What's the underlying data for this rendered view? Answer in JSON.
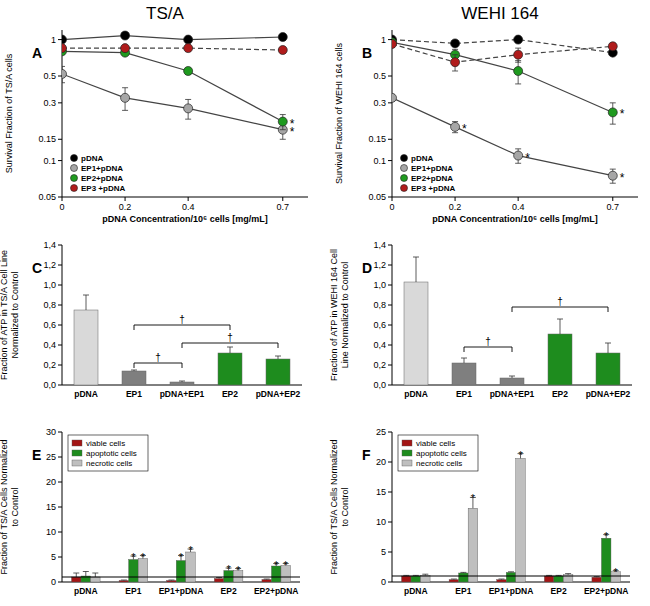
{
  "columns": [
    "TS/A",
    "WEHI 164"
  ],
  "chart_data": [
    {
      "type": "line",
      "title": "A",
      "log": "y",
      "grid": false,
      "legend": "lower left",
      "xlabel": "pDNA Concentration/10⁶ cells [mg/mL]",
      "ylabel": [
        "Survival Fraction of TS/A cells"
      ],
      "x": [
        0,
        0.2,
        0.4,
        0.7
      ],
      "xlim": [
        0,
        0.78
      ],
      "xticks": [
        0,
        0.2,
        0.4,
        0.7
      ],
      "ylim": [
        0.05,
        1.2
      ],
      "yticks": [
        0.05,
        0.1,
        0.15,
        0.3,
        0.5,
        1
      ],
      "series": [
        {
          "name": "pDNA",
          "color": "#000000",
          "marker": "circle",
          "line_style": "solid",
          "values": [
            1.0,
            1.08,
            1.0,
            1.05
          ],
          "errors": [
            0.02,
            0.03,
            0.02,
            0.03
          ]
        },
        {
          "name": "EP1+pDNA",
          "color": "#a6a6a6",
          "marker": "circle",
          "line_style": "solid",
          "values": [
            0.52,
            0.33,
            0.27,
            0.18
          ],
          "errors": [
            0.08,
            0.07,
            0.05,
            0.03
          ]
        },
        {
          "name": "EP2+pDNA",
          "color": "#1f9a1f",
          "marker": "circle",
          "line_style": "solid",
          "values": [
            0.8,
            0.78,
            0.55,
            0.21
          ],
          "errors": [
            0.03,
            0.04,
            0.03,
            0.03
          ]
        },
        {
          "name": "EP3 +pDNA",
          "color": "#b01c1c",
          "marker": "circle",
          "line_style": "dashed",
          "values": [
            0.85,
            0.85,
            0.85,
            0.82
          ],
          "errors": [
            0.02,
            0.03,
            0.02,
            0.03
          ]
        }
      ],
      "annotations": [
        {
          "text": "*",
          "series": 1,
          "index": 3
        },
        {
          "text": "*",
          "series": 2,
          "index": 3
        }
      ]
    },
    {
      "type": "line",
      "title": "B",
      "log": "y",
      "grid": false,
      "legend": "lower left",
      "xlabel": "pDNA Concentration/10⁶ cells [mg/mL]",
      "ylabel": [
        "Survival Fraction of WEHI 164 cells"
      ],
      "x": [
        0,
        0.2,
        0.4,
        0.7
      ],
      "xlim": [
        0,
        0.78
      ],
      "xticks": [
        0,
        0.2,
        0.4,
        0.7
      ],
      "ylim": [
        0.05,
        1.2
      ],
      "yticks": [
        0.05,
        0.1,
        0.15,
        0.3,
        0.5,
        1
      ],
      "series": [
        {
          "name": "pDNA",
          "color": "#000000",
          "marker": "circle",
          "line_style": "dashed",
          "values": [
            1.0,
            0.93,
            1.0,
            0.78
          ],
          "errors": [
            0.03,
            0.04,
            0.03,
            0.04
          ]
        },
        {
          "name": "EP1+pDNA",
          "color": "#a6a6a6",
          "marker": "circle",
          "line_style": "solid",
          "values": [
            0.33,
            0.19,
            0.11,
            0.075
          ],
          "errors": [
            0.02,
            0.02,
            0.015,
            0.01
          ]
        },
        {
          "name": "EP2+pDNA",
          "color": "#1f9a1f",
          "marker": "circle",
          "line_style": "solid",
          "values": [
            0.95,
            0.75,
            0.55,
            0.25
          ],
          "errors": [
            0.05,
            0.08,
            0.12,
            0.05
          ]
        },
        {
          "name": "EP3 +pDNA",
          "color": "#b01c1c",
          "marker": "circle",
          "line_style": "dashed",
          "values": [
            0.92,
            0.65,
            0.75,
            0.88
          ],
          "errors": [
            0.05,
            0.1,
            0.1,
            0.05
          ]
        }
      ],
      "annotations": [
        {
          "text": "*",
          "series": 1,
          "index": 1
        },
        {
          "text": "*",
          "series": 1,
          "index": 2
        },
        {
          "text": "*",
          "series": 1,
          "index": 3
        },
        {
          "text": "*",
          "series": 2,
          "index": 3
        }
      ]
    },
    {
      "type": "bar",
      "title": "C",
      "grid": false,
      "ylabel": [
        "Fraction of ATP in TS/A Cell Line",
        "Normalized to Control"
      ],
      "categories": [
        "pDNA",
        "EP1",
        "pDNA+EP1",
        "EP2",
        "pDNA+EP2"
      ],
      "values": [
        0.75,
        0.14,
        0.03,
        0.32,
        0.26
      ],
      "errors": [
        0.15,
        0.01,
        0.01,
        0.06,
        0.03
      ],
      "colors": [
        "#d9d9d9",
        "#7f7f7f",
        "#7f7f7f",
        "#1e8c1e",
        "#1e8c1e"
      ],
      "ylim": [
        0,
        1.4
      ],
      "yticks": [
        {
          "value": 0,
          "label": "0,0"
        },
        {
          "value": 0.2,
          "label": "0,2"
        },
        {
          "value": 0.4,
          "label": "0,4"
        },
        {
          "value": 0.6,
          "label": "0,6"
        },
        {
          "value": 0.8,
          "label": "0,8"
        },
        {
          "value": 1.0,
          "label": "1,0"
        },
        {
          "value": 1.2,
          "label": "1,2"
        },
        {
          "value": 1.4,
          "label": "1,4"
        }
      ],
      "brackets": [
        {
          "text": "†",
          "from": 1,
          "to": 3,
          "y": 0.6
        },
        {
          "text": "†",
          "from": 1,
          "to": 2,
          "y": 0.22
        },
        {
          "text": "†",
          "from": 2,
          "to": 4,
          "y": 0.42
        }
      ]
    },
    {
      "type": "bar",
      "title": "D",
      "grid": false,
      "ylabel": [
        "Fraction of ATP in WEHI 164 Cell",
        "Line Normalized to Control"
      ],
      "categories": [
        "pDNA",
        "EP1",
        "pDNA+EP1",
        "EP2",
        "pDNA+EP2"
      ],
      "values": [
        1.03,
        0.22,
        0.07,
        0.51,
        0.32
      ],
      "errors": [
        0.25,
        0.05,
        0.02,
        0.15,
        0.1
      ],
      "colors": [
        "#d9d9d9",
        "#7f7f7f",
        "#7f7f7f",
        "#1e8c1e",
        "#1e8c1e"
      ],
      "ylim": [
        0,
        1.4
      ],
      "yticks": [
        {
          "value": 0,
          "label": "0,0"
        },
        {
          "value": 0.2,
          "label": "0,2"
        },
        {
          "value": 0.4,
          "label": "0,4"
        },
        {
          "value": 0.6,
          "label": "0,6"
        },
        {
          "value": 0.8,
          "label": "0,8"
        },
        {
          "value": 1.0,
          "label": "1,0"
        },
        {
          "value": 1.2,
          "label": "1,2"
        },
        {
          "value": 1.4,
          "label": "1,4"
        }
      ],
      "brackets": [
        {
          "text": "†",
          "from": 1,
          "to": 2,
          "y": 0.38
        },
        {
          "text": "†",
          "from": 2,
          "to": 4,
          "y": 0.78
        }
      ]
    },
    {
      "type": "bar",
      "title": "E",
      "grid": false,
      "legend": "upper left",
      "hline": 1,
      "ylabel": [
        "Fraction of TS/A Cells Normalized",
        "to Control"
      ],
      "categories": [
        "pDNA",
        "EP1",
        "EP1+pDNA",
        "EP2",
        "EP2+pDNA"
      ],
      "ylim": [
        0,
        30
      ],
      "yticks": [
        0,
        5,
        10,
        15,
        20,
        25,
        30
      ],
      "series": [
        {
          "name": "viable cells",
          "color": "#a31515",
          "values": [
            1.0,
            0.3,
            0.3,
            0.7,
            0.5
          ],
          "errors": [
            0.8,
            0.1,
            0.1,
            0.2,
            0.1
          ]
        },
        {
          "name": "apoptotic cells",
          "color": "#1e8c1e",
          "values": [
            1.2,
            4.5,
            4.3,
            2.3,
            3.2
          ],
          "errors": [
            0.9,
            0.7,
            1.0,
            0.5,
            0.5
          ]
        },
        {
          "name": "necrotic cells",
          "color": "#bfbfbf",
          "values": [
            1.0,
            4.7,
            6.0,
            2.3,
            3.3
          ],
          "errors": [
            0.8,
            0.6,
            0.6,
            0.4,
            0.4
          ]
        }
      ],
      "annotations": [
        {
          "text": "*",
          "series": 1,
          "index": 1
        },
        {
          "text": "*",
          "series": 2,
          "index": 1
        },
        {
          "text": "*",
          "series": 1,
          "index": 2
        },
        {
          "text": "*",
          "series": 2,
          "index": 2
        },
        {
          "text": "*",
          "series": 1,
          "index": 3
        },
        {
          "text": "*",
          "series": 2,
          "index": 3
        },
        {
          "text": "*",
          "series": 1,
          "index": 4
        },
        {
          "text": "*",
          "series": 2,
          "index": 4
        }
      ]
    },
    {
      "type": "bar",
      "title": "F",
      "grid": false,
      "legend": "upper left",
      "hline": 1,
      "ylabel": [
        "Fraction of TS/A Cells Normalized",
        "to Control"
      ],
      "categories": [
        "pDNA",
        "EP1",
        "EP1+pDNA",
        "EP2",
        "EP2+pDNA"
      ],
      "ylim": [
        0,
        25
      ],
      "yticks": [
        0,
        5,
        10,
        15,
        20,
        25
      ],
      "series": [
        {
          "name": "viable cells",
          "color": "#a31515",
          "values": [
            1.0,
            0.4,
            0.4,
            1.0,
            0.8
          ],
          "errors": [
            0.1,
            0.1,
            0.1,
            0.1,
            0.1
          ]
        },
        {
          "name": "apoptotic cells",
          "color": "#1e8c1e",
          "values": [
            1.0,
            1.5,
            1.6,
            1.0,
            7.3
          ],
          "errors": [
            0.1,
            0.1,
            0.1,
            0.1,
            0.6
          ]
        },
        {
          "name": "necrotic cells",
          "color": "#bfbfbf",
          "values": [
            1.1,
            12.3,
            20.6,
            1.2,
            1.7
          ],
          "errors": [
            0.2,
            1.8,
            0.8,
            0.2,
            0.2
          ]
        }
      ],
      "annotations": [
        {
          "text": "*",
          "series": 2,
          "index": 1
        },
        {
          "text": "*",
          "series": 2,
          "index": 2
        },
        {
          "text": "*",
          "series": 1,
          "index": 4
        },
        {
          "text": "*",
          "series": 2,
          "index": 4
        }
      ]
    }
  ]
}
